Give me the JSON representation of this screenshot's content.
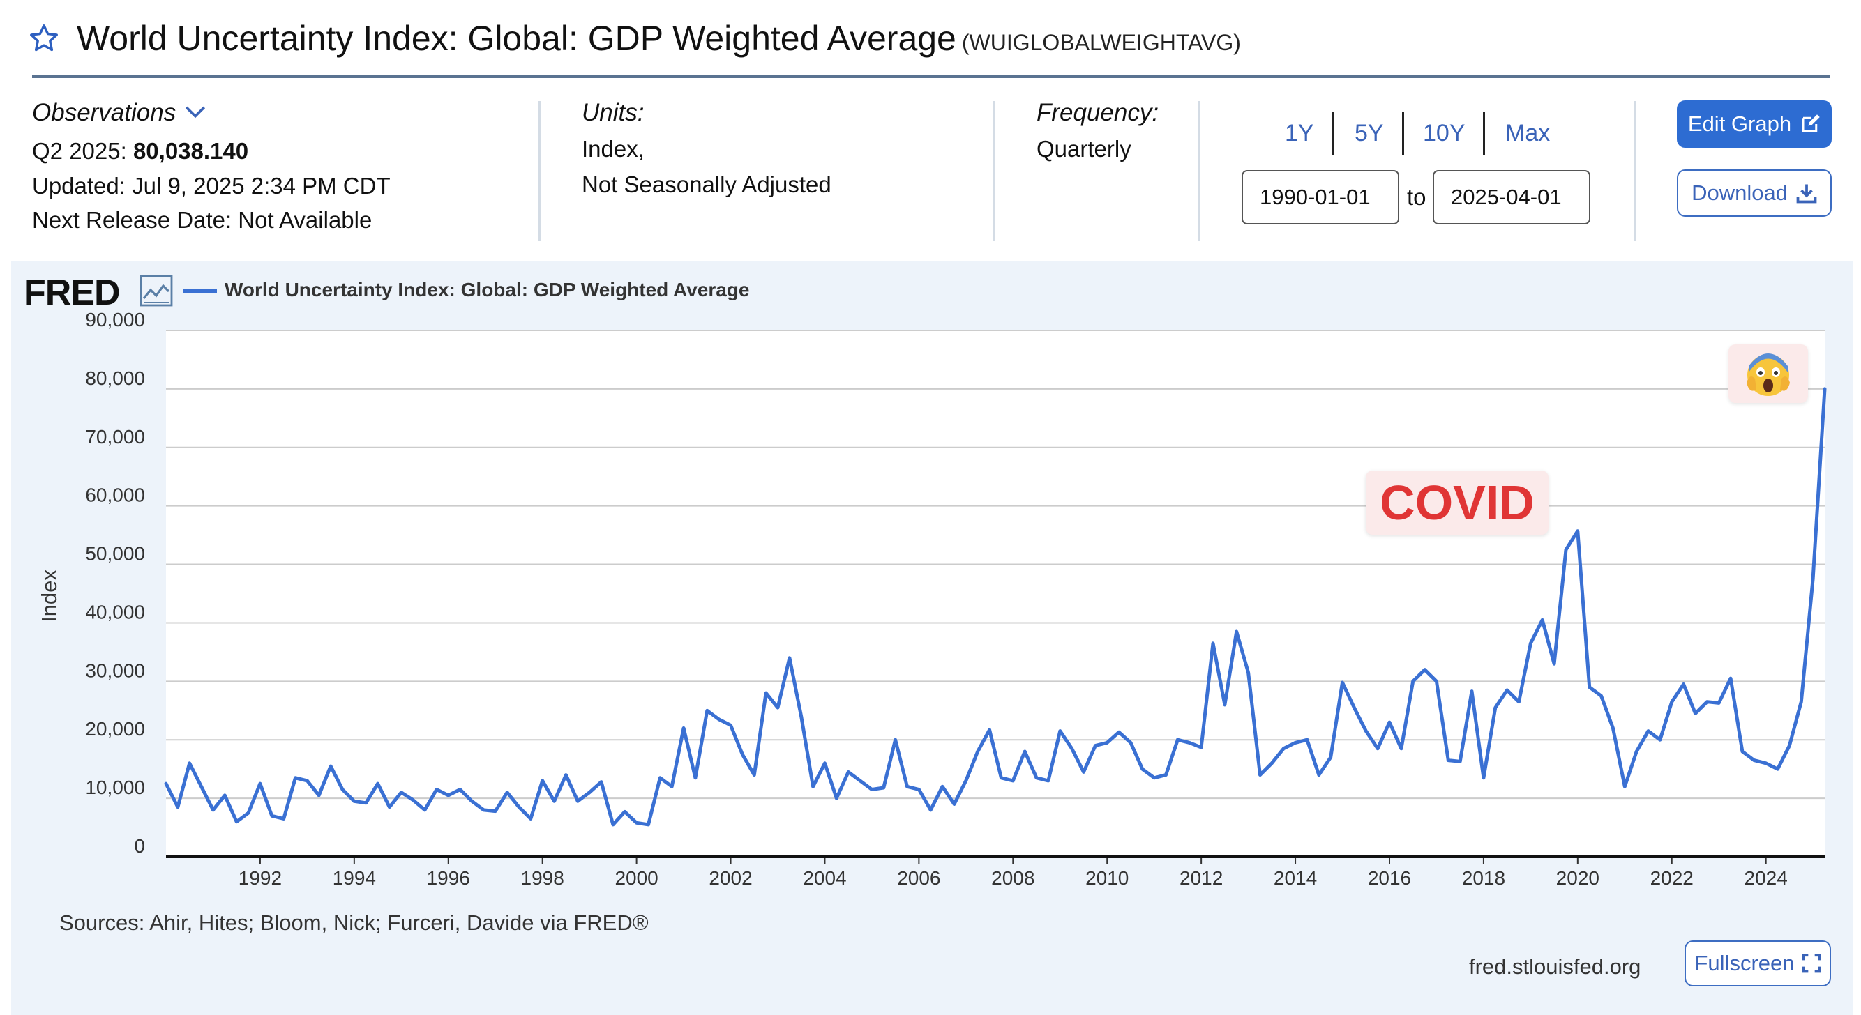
{
  "header": {
    "title": "World Uncertainty Index: Global: GDP Weighted Average",
    "series_id": "(WUIGLOBALWEIGHTAVG)"
  },
  "observations": {
    "label": "Observations",
    "latest_period": "Q2 2025:",
    "latest_value": "80,038.140",
    "updated": "Updated: Jul 9, 2025 2:34 PM CDT",
    "next_release": "Next Release Date: Not Available"
  },
  "units": {
    "label": "Units:",
    "line1": "Index,",
    "line2": "Not Seasonally Adjusted"
  },
  "frequency": {
    "label": "Frequency:",
    "value": "Quarterly"
  },
  "range": {
    "buttons": [
      "1Y",
      "5Y",
      "10Y",
      "Max"
    ],
    "start": "1990-01-01",
    "to": "to",
    "end": "2025-04-01"
  },
  "actions": {
    "edit_graph": "Edit Graph",
    "download": "Download",
    "fullscreen": "Fullscreen"
  },
  "brand": {
    "logo": "FRED",
    "site": "fred.stlouisfed.org"
  },
  "sources": "Sources: Ahir, Hites; Bloom, Nick; Furceri, Davide via FRED®",
  "annotations": {
    "covid": "COVID",
    "emoji": "😱"
  },
  "colors": {
    "series": "#3a70d3",
    "brand_blue": "#2d6cd2",
    "panel_bg": "#edf3fa",
    "covid_red": "#e03535"
  },
  "chart_data": {
    "type": "line",
    "title": "World Uncertainty Index: Global: GDP Weighted Average",
    "legend": "World Uncertainty Index: Global: GDP Weighted Average",
    "ylabel": "Index",
    "xlabel": "",
    "ylim": [
      0,
      90000
    ],
    "yticks": [
      0,
      10000,
      20000,
      30000,
      40000,
      50000,
      60000,
      70000,
      80000,
      90000
    ],
    "ytick_labels": [
      "0",
      "10,000",
      "20,000",
      "30,000",
      "40,000",
      "50,000",
      "60,000",
      "70,000",
      "80,000",
      "90,000"
    ],
    "xlim": [
      1990.0,
      2025.25
    ],
    "xticks": [
      1992,
      1994,
      1996,
      1998,
      2000,
      2002,
      2004,
      2006,
      2008,
      2010,
      2012,
      2014,
      2016,
      2018,
      2020,
      2022,
      2024
    ],
    "xtick_labels": [
      "1992",
      "1994",
      "1996",
      "1998",
      "2000",
      "2002",
      "2004",
      "2006",
      "2008",
      "2010",
      "2012",
      "2014",
      "2016",
      "2018",
      "2020",
      "2022",
      "2024"
    ],
    "grid": true,
    "x_start": 1990.0,
    "x_step": 0.25,
    "series": [
      {
        "name": "World Uncertainty Index: Global: GDP Weighted Average",
        "values": [
          12500,
          8500,
          16000,
          12000,
          8000,
          10500,
          6000,
          7500,
          12500,
          7000,
          6500,
          13500,
          13000,
          10500,
          15500,
          11500,
          9500,
          9200,
          12500,
          8500,
          11000,
          9700,
          8000,
          11500,
          10500,
          11500,
          9500,
          8000,
          7800,
          11000,
          8500,
          6500,
          13000,
          9500,
          14000,
          9500,
          11000,
          12800,
          5500,
          7700,
          5800,
          5500,
          13500,
          12000,
          22000,
          13500,
          25000,
          23500,
          22500,
          17500,
          14000,
          28000,
          25500,
          34000,
          24000,
          12000,
          16000,
          10000,
          14500,
          13000,
          11500,
          11800,
          20000,
          12000,
          11500,
          8000,
          12000,
          9000,
          13000,
          18000,
          21700,
          13500,
          13000,
          18000,
          13500,
          13000,
          21500,
          18500,
          14500,
          19000,
          19500,
          21300,
          19500,
          15000,
          13500,
          14000,
          20000,
          19500,
          18700,
          36500,
          26000,
          38500,
          31500,
          14000,
          16000,
          18500,
          19500,
          20000,
          14000,
          17000,
          29800,
          25500,
          21500,
          18500,
          23000,
          18500,
          30000,
          32000,
          30000,
          16500,
          16300,
          28300,
          13500,
          25500,
          28500,
          26500,
          36500,
          40500,
          33000,
          52500,
          55700,
          29000,
          27500,
          22000,
          12000,
          18000,
          21500,
          20000,
          26500,
          29500,
          24500,
          26500,
          26300,
          30500,
          18000,
          16500,
          16000,
          15000,
          19000,
          26500,
          47500,
          80000
        ]
      }
    ]
  }
}
